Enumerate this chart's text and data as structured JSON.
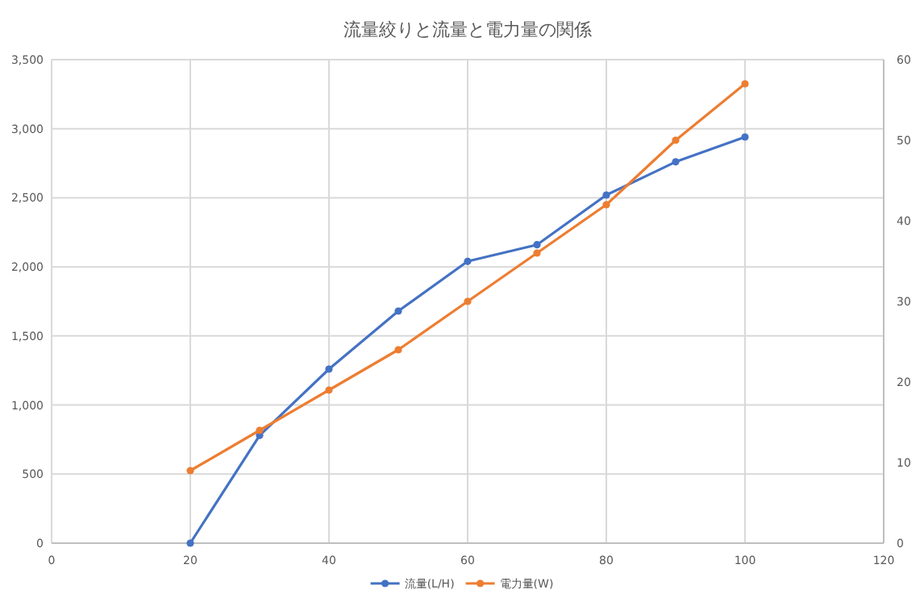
{
  "chart_data": {
    "type": "line",
    "title": "流量絞りと流量と電力量の関係",
    "x": [
      20,
      30,
      40,
      50,
      60,
      70,
      80,
      90,
      100
    ],
    "series": [
      {
        "name": "流量(L/H)",
        "color": "#4472c4",
        "values": [
          0,
          780,
          1260,
          1680,
          2040,
          2160,
          2520,
          2760,
          2940
        ]
      },
      {
        "name": "電力量(W)",
        "color": "#ed7d31",
        "axis": "y2",
        "values": [
          9,
          14,
          19,
          24,
          30,
          36,
          42,
          50,
          57
        ]
      }
    ],
    "xlim": [
      0,
      120
    ],
    "xticks": [
      0,
      20,
      40,
      60,
      80,
      100,
      120
    ],
    "ylim": [
      0,
      3500
    ],
    "yticks": [
      {
        "value": 0,
        "label": "0"
      },
      {
        "value": 500,
        "label": "500"
      },
      {
        "value": 1000,
        "label": "1,000"
      },
      {
        "value": 1500,
        "label": "1,500"
      },
      {
        "value": 2000,
        "label": "2,000"
      },
      {
        "value": 2500,
        "label": "2,500"
      },
      {
        "value": 3000,
        "label": "3,000"
      },
      {
        "value": 3500,
        "label": "3,500"
      }
    ],
    "y2lim": [
      0,
      60
    ],
    "y2ticks": [
      0,
      10,
      20,
      30,
      40,
      50,
      60
    ],
    "grid": true,
    "legend": "bottom",
    "marker": "circle",
    "line_style": "solid"
  }
}
